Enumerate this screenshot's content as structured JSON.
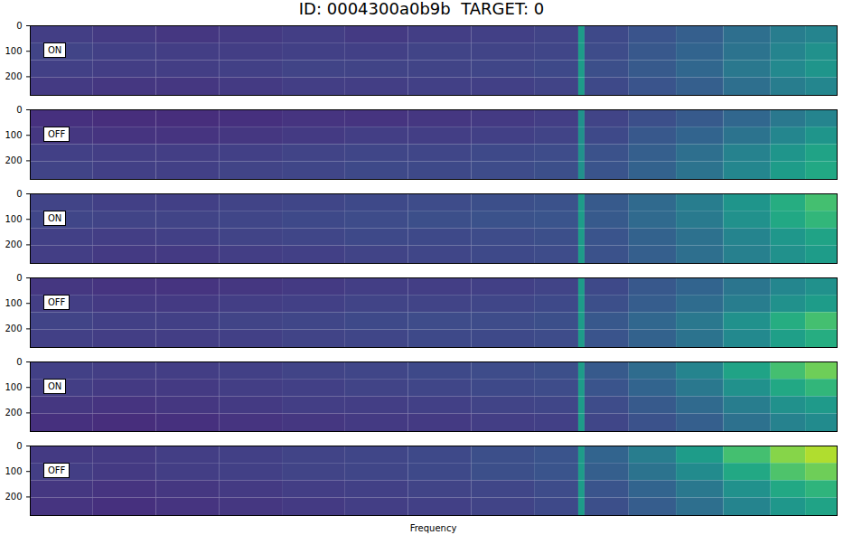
{
  "chart_data": {
    "type": "heatmap",
    "title": "ID: 0004300a0b9b  TARGET: 0",
    "xlabel": "Frequency",
    "xlim": [
      0,
      256
    ],
    "ylim": [
      0,
      273
    ],
    "yticks": [
      0,
      100,
      200
    ],
    "tick_labels": "y",
    "x_edges": [
      0,
      20,
      40,
      60,
      80,
      100,
      120,
      140,
      160,
      174,
      176,
      190,
      205,
      220,
      235,
      246,
      256
    ],
    "y_edges": [
      0,
      68,
      136,
      204,
      273
    ],
    "color_range": [
      0,
      1
    ],
    "panels": [
      {
        "label": "ON",
        "cells": [
          [
            0.18,
            0.17,
            0.16,
            0.17,
            0.18,
            0.17,
            0.18,
            0.19,
            0.2,
            0.55,
            0.22,
            0.26,
            0.3,
            0.36,
            0.42,
            0.45
          ],
          [
            0.2,
            0.19,
            0.18,
            0.18,
            0.19,
            0.19,
            0.2,
            0.2,
            0.21,
            0.55,
            0.23,
            0.27,
            0.32,
            0.38,
            0.45,
            0.5
          ],
          [
            0.19,
            0.18,
            0.18,
            0.19,
            0.2,
            0.2,
            0.2,
            0.21,
            0.22,
            0.55,
            0.24,
            0.28,
            0.33,
            0.4,
            0.47,
            0.52
          ],
          [
            0.17,
            0.16,
            0.16,
            0.17,
            0.18,
            0.18,
            0.19,
            0.19,
            0.2,
            0.55,
            0.22,
            0.26,
            0.3,
            0.36,
            0.42,
            0.46
          ]
        ]
      },
      {
        "label": "OFF",
        "cells": [
          [
            0.14,
            0.13,
            0.13,
            0.14,
            0.15,
            0.15,
            0.16,
            0.17,
            0.18,
            0.5,
            0.2,
            0.24,
            0.28,
            0.33,
            0.4,
            0.45
          ],
          [
            0.16,
            0.15,
            0.15,
            0.16,
            0.17,
            0.18,
            0.18,
            0.19,
            0.2,
            0.5,
            0.22,
            0.27,
            0.32,
            0.38,
            0.46,
            0.52
          ],
          [
            0.19,
            0.18,
            0.18,
            0.19,
            0.2,
            0.21,
            0.21,
            0.22,
            0.23,
            0.5,
            0.25,
            0.3,
            0.36,
            0.44,
            0.52,
            0.58
          ],
          [
            0.2,
            0.19,
            0.19,
            0.2,
            0.21,
            0.22,
            0.22,
            0.23,
            0.24,
            0.5,
            0.26,
            0.31,
            0.38,
            0.46,
            0.55,
            0.6
          ]
        ]
      },
      {
        "label": "ON",
        "cells": [
          [
            0.2,
            0.19,
            0.19,
            0.2,
            0.21,
            0.22,
            0.23,
            0.24,
            0.25,
            0.55,
            0.28,
            0.34,
            0.42,
            0.52,
            0.62,
            0.7
          ],
          [
            0.21,
            0.2,
            0.2,
            0.21,
            0.22,
            0.23,
            0.24,
            0.25,
            0.26,
            0.55,
            0.28,
            0.34,
            0.41,
            0.5,
            0.6,
            0.66
          ],
          [
            0.19,
            0.18,
            0.19,
            0.2,
            0.21,
            0.22,
            0.22,
            0.23,
            0.24,
            0.55,
            0.26,
            0.31,
            0.37,
            0.45,
            0.53,
            0.58
          ],
          [
            0.18,
            0.17,
            0.17,
            0.18,
            0.19,
            0.2,
            0.21,
            0.22,
            0.23,
            0.55,
            0.25,
            0.3,
            0.36,
            0.43,
            0.5,
            0.55
          ]
        ]
      },
      {
        "label": "OFF",
        "cells": [
          [
            0.16,
            0.15,
            0.15,
            0.16,
            0.17,
            0.18,
            0.18,
            0.19,
            0.2,
            0.55,
            0.22,
            0.27,
            0.32,
            0.39,
            0.46,
            0.5
          ],
          [
            0.18,
            0.17,
            0.17,
            0.18,
            0.19,
            0.2,
            0.2,
            0.21,
            0.22,
            0.55,
            0.24,
            0.29,
            0.35,
            0.42,
            0.5,
            0.55
          ],
          [
            0.2,
            0.19,
            0.19,
            0.2,
            0.21,
            0.22,
            0.23,
            0.23,
            0.24,
            0.55,
            0.27,
            0.33,
            0.4,
            0.5,
            0.62,
            0.7
          ],
          [
            0.19,
            0.18,
            0.18,
            0.19,
            0.2,
            0.21,
            0.22,
            0.22,
            0.23,
            0.55,
            0.26,
            0.31,
            0.38,
            0.47,
            0.56,
            0.62
          ]
        ]
      },
      {
        "label": "ON",
        "cells": [
          [
            0.19,
            0.18,
            0.18,
            0.19,
            0.2,
            0.21,
            0.22,
            0.23,
            0.24,
            0.55,
            0.28,
            0.35,
            0.45,
            0.58,
            0.7,
            0.78
          ],
          [
            0.18,
            0.17,
            0.17,
            0.18,
            0.19,
            0.2,
            0.21,
            0.22,
            0.23,
            0.55,
            0.26,
            0.32,
            0.4,
            0.5,
            0.6,
            0.66
          ],
          [
            0.16,
            0.15,
            0.16,
            0.17,
            0.18,
            0.18,
            0.19,
            0.2,
            0.21,
            0.55,
            0.23,
            0.28,
            0.34,
            0.42,
            0.5,
            0.54
          ],
          [
            0.14,
            0.13,
            0.14,
            0.15,
            0.16,
            0.17,
            0.17,
            0.18,
            0.19,
            0.55,
            0.21,
            0.25,
            0.3,
            0.37,
            0.44,
            0.48
          ]
        ]
      },
      {
        "label": "OFF",
        "cells": [
          [
            0.17,
            0.17,
            0.18,
            0.19,
            0.2,
            0.21,
            0.22,
            0.24,
            0.26,
            0.55,
            0.32,
            0.42,
            0.55,
            0.7,
            0.82,
            0.88
          ],
          [
            0.18,
            0.17,
            0.18,
            0.19,
            0.2,
            0.21,
            0.22,
            0.24,
            0.26,
            0.55,
            0.3,
            0.38,
            0.48,
            0.6,
            0.72,
            0.78
          ],
          [
            0.16,
            0.15,
            0.16,
            0.17,
            0.18,
            0.19,
            0.2,
            0.21,
            0.23,
            0.55,
            0.26,
            0.32,
            0.4,
            0.5,
            0.6,
            0.65
          ],
          [
            0.15,
            0.14,
            0.15,
            0.16,
            0.17,
            0.18,
            0.19,
            0.2,
            0.22,
            0.55,
            0.24,
            0.29,
            0.36,
            0.45,
            0.53,
            0.58
          ]
        ]
      }
    ]
  }
}
